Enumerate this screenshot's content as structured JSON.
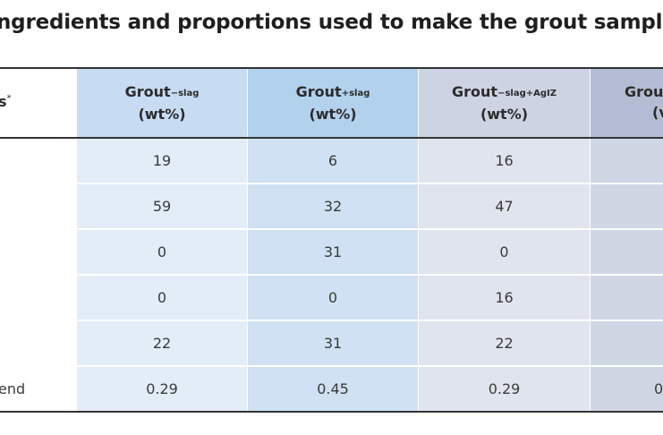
{
  "title": "ngredients and proportions used to make the grout samples",
  "row_header": {
    "text": "s",
    "mark": "*"
  },
  "columns": [
    {
      "main": "Grout",
      "sub": "−slag",
      "unit": "(wt%)"
    },
    {
      "main": "Grout",
      "sub": "+slag",
      "unit": "(wt%)"
    },
    {
      "main": "Grout",
      "sub": "−slag+AgIZ",
      "unit": "(wt%)"
    },
    {
      "main": "Grou",
      "unit": "(v"
    }
  ],
  "rows": [
    {
      "label": "",
      "values": [
        "19",
        "6",
        "16"
      ]
    },
    {
      "label": "",
      "values": [
        "59",
        "32",
        "47"
      ]
    },
    {
      "label": "",
      "values": [
        "0",
        "31",
        "0"
      ]
    },
    {
      "label": "",
      "values": [
        "0",
        "0",
        "16"
      ]
    },
    {
      "label": "",
      "values": [
        "22",
        "31",
        "22"
      ]
    },
    {
      "label": "end",
      "values": [
        "0.29",
        "0.45",
        "0.29"
      ],
      "partial_c4": "0"
    }
  ]
}
